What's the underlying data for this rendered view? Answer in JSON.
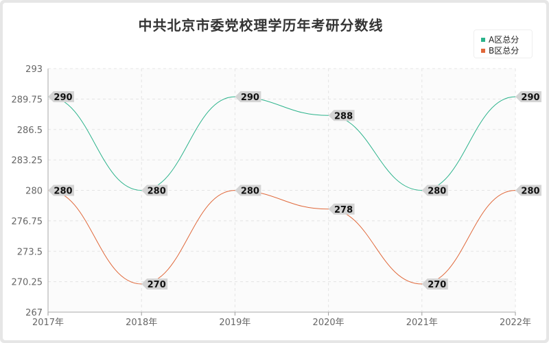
{
  "title": "中共北京市委党校理学历年考研分数线",
  "colors": {
    "seriesA": "#2bb38b",
    "seriesB": "#e0683a",
    "labelBg": "#d4d4d4",
    "grid": "#e4e4e4",
    "axisText": "#666666",
    "plotBg": "#fbfbfb"
  },
  "chart_data": {
    "type": "line",
    "title": "中共北京市委党校理学历年考研分数线",
    "categories": [
      "2017年",
      "2018年",
      "2019年",
      "2020年",
      "2021年",
      "2022年"
    ],
    "series": [
      {
        "name": "A区总分",
        "values": [
          290,
          280,
          290,
          288,
          280,
          290
        ]
      },
      {
        "name": "B区总分",
        "values": [
          280,
          270,
          280,
          278,
          270,
          280
        ]
      }
    ],
    "ylim": [
      267,
      293
    ],
    "yticks": [
      "293",
      "289.75",
      "286.5",
      "283.25",
      "280",
      "276.75",
      "273.5",
      "270.25",
      "267"
    ],
    "xlabel": "",
    "ylabel": "",
    "grid": true,
    "legend_position": "top-right"
  }
}
